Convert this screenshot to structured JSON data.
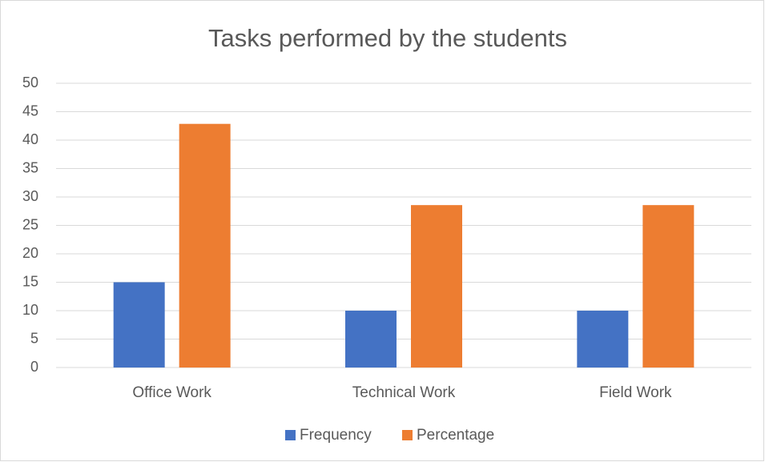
{
  "chart_data": {
    "type": "bar",
    "title": "Tasks performed by the students",
    "categories": [
      "Office Work",
      "Technical Work",
      "Field Work"
    ],
    "series": [
      {
        "name": "Frequency",
        "color": "#4472c4",
        "values": [
          15,
          10,
          10
        ]
      },
      {
        "name": "Percentage",
        "color": "#ed7d31",
        "values": [
          42.86,
          28.57,
          28.57
        ]
      }
    ],
    "ylim": [
      0,
      50
    ],
    "yticks": [
      0,
      5,
      10,
      15,
      20,
      25,
      30,
      35,
      40,
      45,
      50
    ],
    "grid": true,
    "legend": "bottom"
  }
}
